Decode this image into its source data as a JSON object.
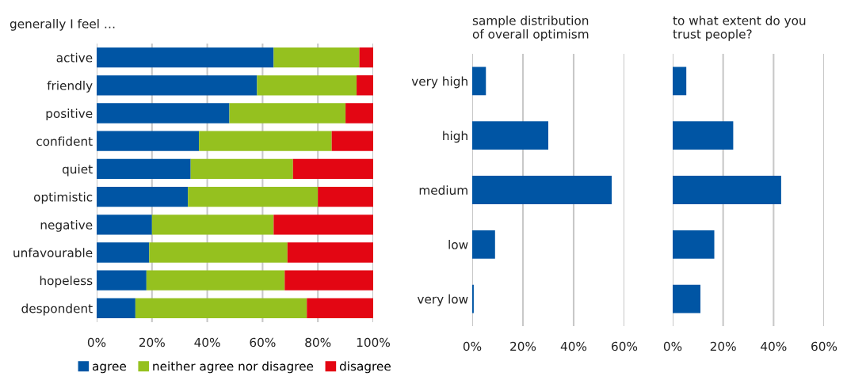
{
  "chart_data": [
    {
      "type": "bar",
      "orientation": "horizontal",
      "stacked": true,
      "title": "generally I feel …",
      "categories": [
        "active",
        "friendly",
        "positive",
        "confident",
        "quiet",
        "optimistic",
        "negative",
        "unfavourable",
        "hopeless",
        "despondent"
      ],
      "series": [
        {
          "name": "agree",
          "color": "#0055a4",
          "values": [
            64,
            58,
            48,
            37,
            34,
            33,
            20,
            19,
            18,
            14
          ]
        },
        {
          "name": "neither agree nor disagree",
          "color": "#95c11f",
          "values": [
            31,
            36,
            42,
            48,
            37,
            47,
            44,
            50,
            50,
            62
          ]
        },
        {
          "name": "disagree",
          "color": "#e30613",
          "values": [
            5,
            6,
            10,
            15,
            29,
            20,
            36,
            31,
            32,
            24
          ]
        }
      ],
      "xlim": [
        0,
        100
      ],
      "xticks": [
        {
          "value": 0,
          "label": "0%"
        },
        {
          "value": 20,
          "label": "20%"
        },
        {
          "value": 40,
          "label": "40%"
        },
        {
          "value": 60,
          "label": "60%"
        },
        {
          "value": 80,
          "label": "80%"
        },
        {
          "value": 100,
          "label": "100%"
        }
      ],
      "grid": "x",
      "legend": "bottom"
    },
    {
      "type": "bar",
      "orientation": "horizontal",
      "title": "sample distribution\nof overall optimism",
      "categories": [
        "very high",
        "high",
        "medium",
        "low",
        "very low"
      ],
      "series": [
        {
          "color": "#0055a4",
          "values": [
            5.4,
            30,
            55,
            9,
            0.6
          ]
        }
      ],
      "xlim": [
        0,
        60
      ],
      "xticks": [
        {
          "value": 0,
          "label": "0%"
        },
        {
          "value": 20,
          "label": "20%"
        },
        {
          "value": 40,
          "label": "40%"
        },
        {
          "value": 60,
          "label": "60%"
        }
      ],
      "grid": "x"
    },
    {
      "type": "bar",
      "orientation": "horizontal",
      "title": "to what extent do you\ntrust people?",
      "categories": [
        null,
        null,
        null,
        null,
        null
      ],
      "series": [
        {
          "color": "#0055a4",
          "values": [
            5.4,
            24,
            43,
            16.5,
            11
          ]
        }
      ],
      "xlim": [
        0,
        60
      ],
      "xticks": [
        {
          "value": 0,
          "label": "0%"
        },
        {
          "value": 20,
          "label": "20%"
        },
        {
          "value": 40,
          "label": "40%"
        },
        {
          "value": 60,
          "label": "60%"
        }
      ],
      "grid": "x"
    }
  ]
}
